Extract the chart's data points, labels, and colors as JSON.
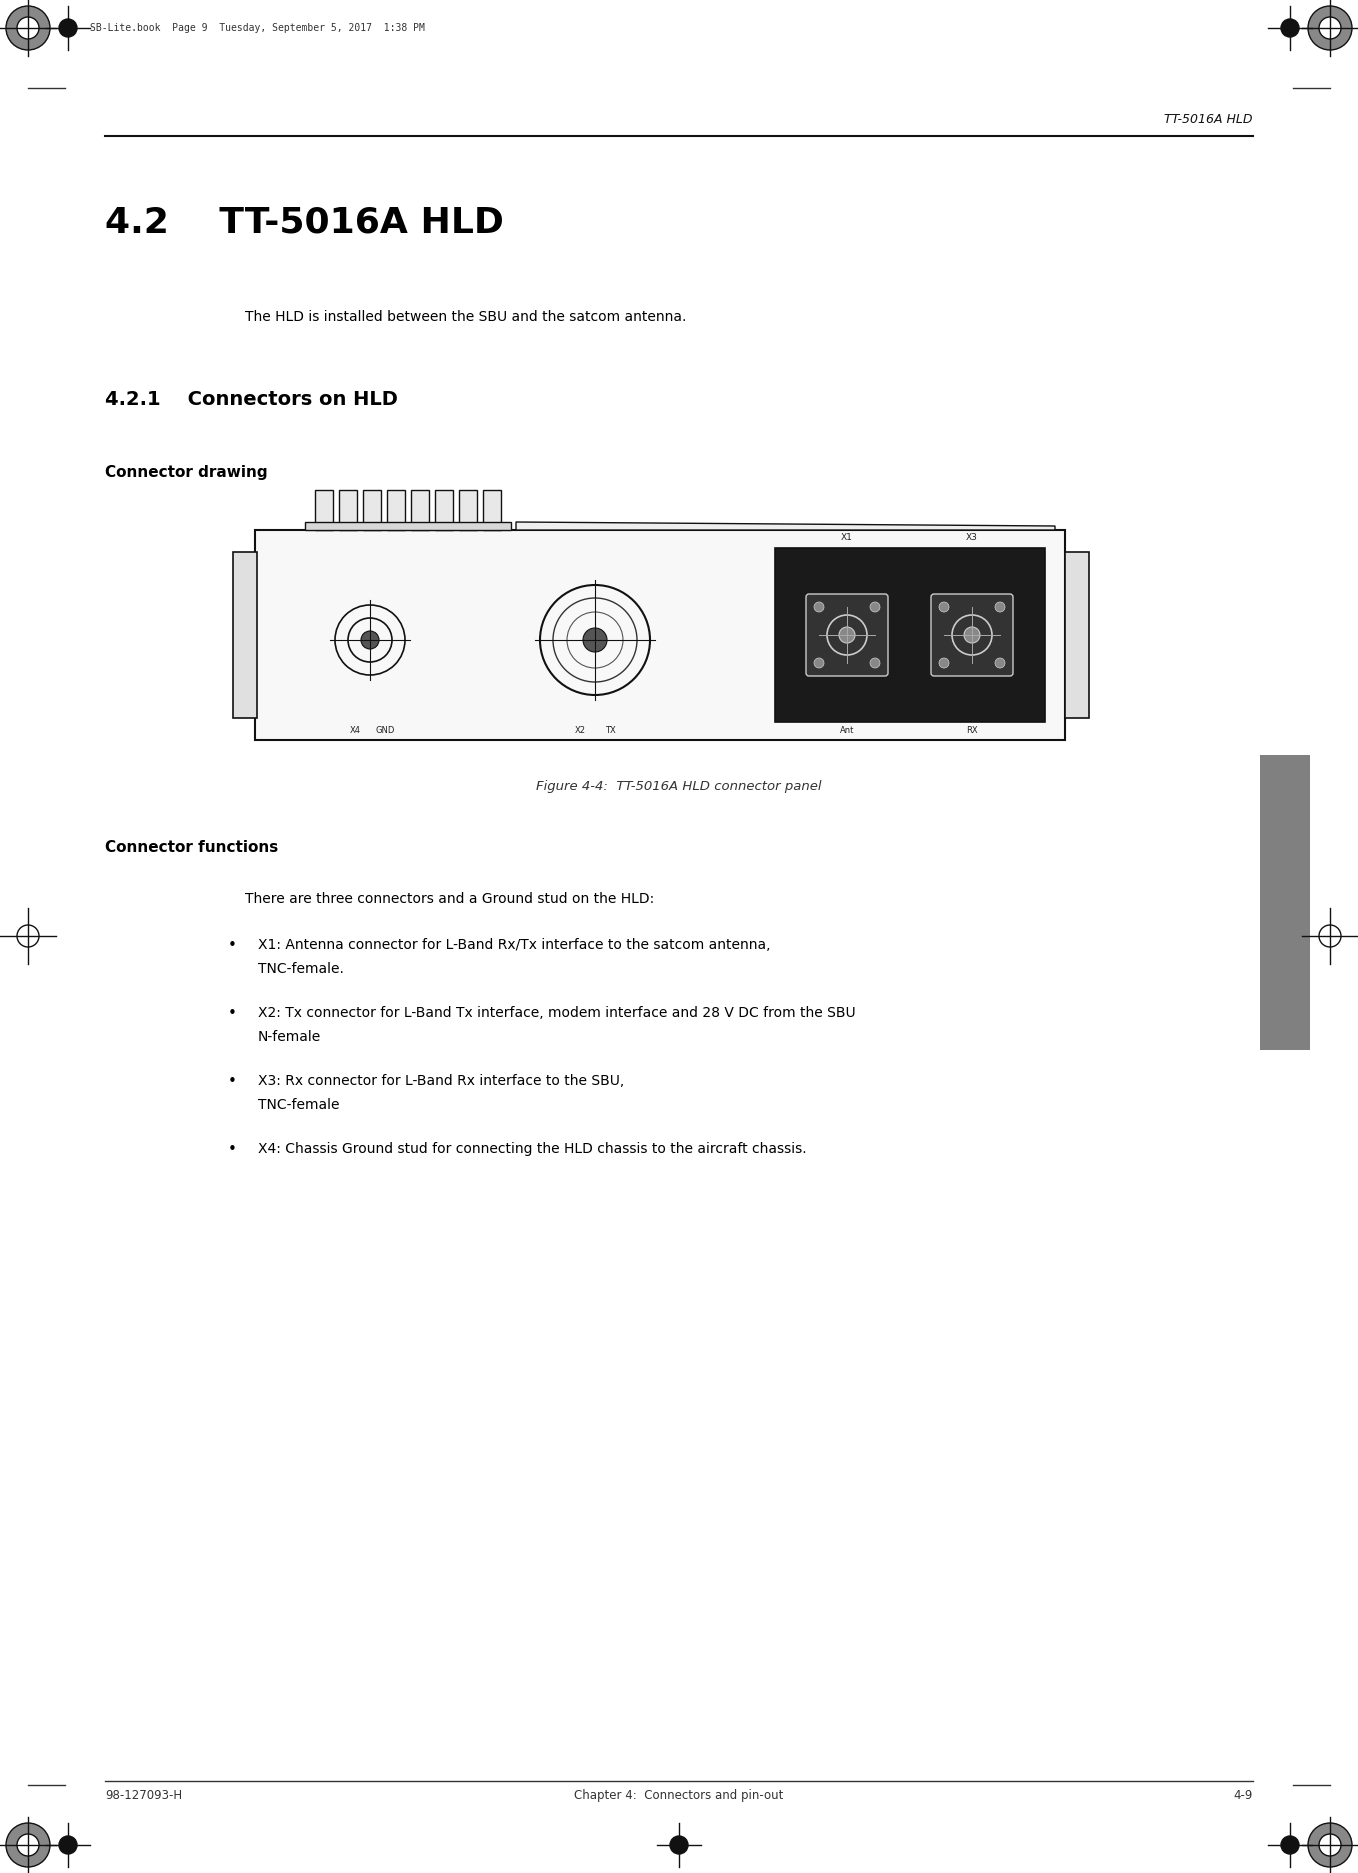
{
  "page_bg": "#ffffff",
  "header_text": "TT-5016A HLD",
  "top_meta_text": "SB-Lite.book  Page 9  Tuesday, September 5, 2017  1:38 PM",
  "footer_left": "98-127093-H",
  "footer_center": "Chapter 4:  Connectors and pin-out",
  "footer_right": "4-9",
  "title_42": "4.2    TT-5016A HLD",
  "title_421": "4.2.1    Connectors on HLD",
  "section_connector_drawing": "Connector drawing",
  "section_connector_functions": "Connector functions",
  "intro_text": "The HLD is installed between the SBU and the satcom antenna.",
  "figure_caption": "Figure 4-4:  TT-5016A HLD connector panel",
  "body_intro": "There are three connectors and a Ground stud on the HLD:",
  "bullet1_line1": "X1: Antenna connector for L-Band Rx/Tx interface to the satcom antenna,",
  "bullet1_line2": "TNC-female.",
  "bullet2_line1": "X2: Tx connector for L-Band Tx interface, modem interface and 28 V DC from the SBU",
  "bullet2_line2": "N-female",
  "bullet3_line1": "X3: Rx connector for L-Band Rx interface to the SBU,",
  "bullet3_line2": "TNC-female",
  "bullet4_line1": "X4: Chassis Ground stud for connecting the HLD chassis to the aircraft chassis.",
  "sidebar_color": "#808080"
}
